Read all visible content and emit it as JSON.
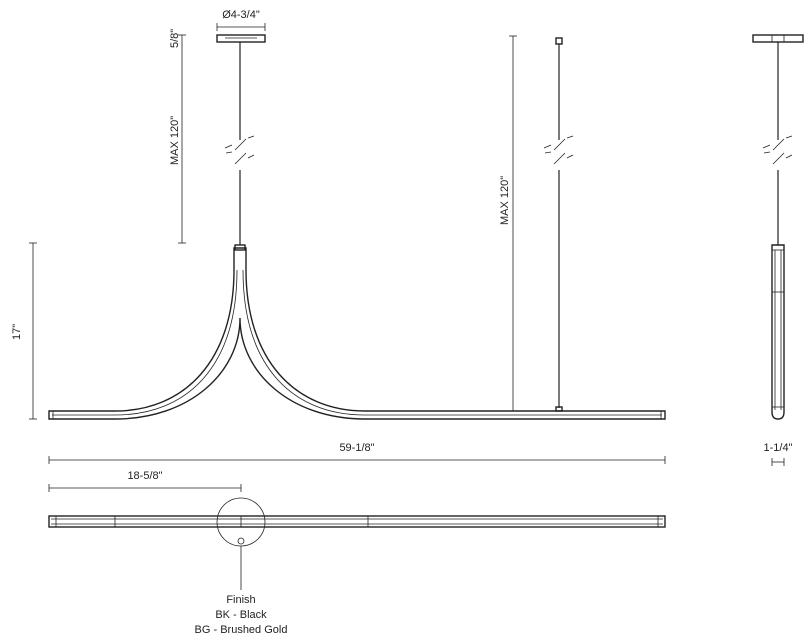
{
  "dimensions": {
    "canopy_diameter": "Ø4-3/4\"",
    "canopy_height": "5/8\"",
    "cable_max_front": "MAX 120\"",
    "cable_max_mid": "MAX 120\"",
    "fixture_height": "17\"",
    "overall_length": "59-1/8\"",
    "canopy_offset": "18-5/8\"",
    "profile_width": "1-1/4\""
  },
  "finish": {
    "heading": "Finish",
    "options": [
      "BK - Black",
      "BG - Brushed Gold"
    ]
  }
}
